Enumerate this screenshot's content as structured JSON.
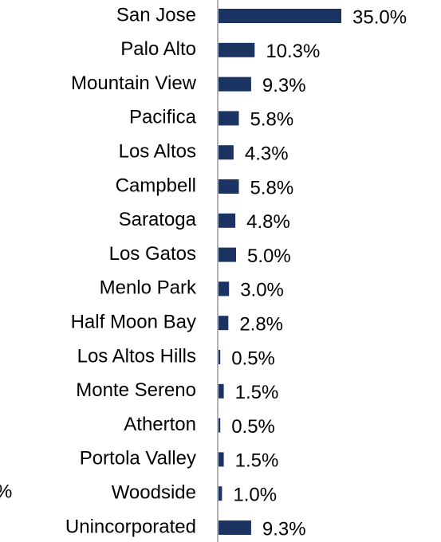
{
  "chart_data": {
    "type": "barh",
    "categories": [
      "San Jose",
      "Palo Alto",
      "Mountain View",
      "Pacifica",
      "Los Altos",
      "Campbell",
      "Saratoga",
      "Los Gatos",
      "Menlo Park",
      "Half Moon Bay",
      "Los Altos Hills",
      "Monte Sereno",
      "Atherton",
      "Portola Valley",
      "Woodside",
      "Unincorporated"
    ],
    "values": [
      35.0,
      10.3,
      9.3,
      5.8,
      4.3,
      5.8,
      4.8,
      5.0,
      3.0,
      2.8,
      0.5,
      1.5,
      0.5,
      1.5,
      1.0,
      9.3
    ],
    "value_labels": [
      "35.0%",
      "10.3%",
      "9.3%",
      "5.8%",
      "4.3%",
      "5.8%",
      "4.8%",
      "5.0%",
      "3.0%",
      "2.8%",
      "0.5%",
      "1.5%",
      "0.5%",
      "1.5%",
      "1.0%",
      "9.3%"
    ],
    "color": "#1c3461",
    "annotation": "%"
  }
}
